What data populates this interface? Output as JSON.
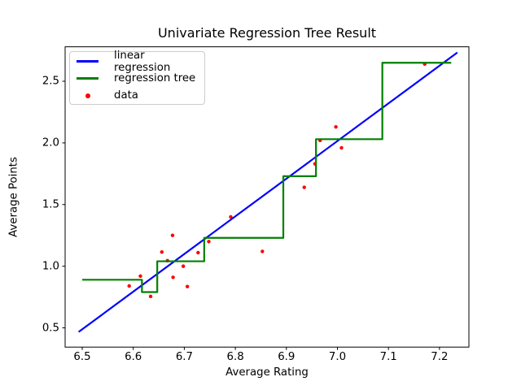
{
  "figure": {
    "background": "#ffffff",
    "spine_color": "#000000"
  },
  "chart_data": {
    "type": "line",
    "title": "Univariate Regression Tree Result",
    "xlabel": "Average Rating",
    "ylabel": "Average Points",
    "xlim": [
      6.4665,
      7.2576
    ],
    "ylim": [
      0.3439,
      2.7795
    ],
    "xticks": [
      6.5,
      6.6,
      6.7,
      6.8,
      6.9,
      7.0,
      7.1,
      7.2
    ],
    "yticks": [
      0.5,
      1.0,
      1.5,
      2.0,
      2.5
    ],
    "grid": false,
    "legend_position": "upper left",
    "series": [
      {
        "name": "data",
        "type": "scatter",
        "color": "#ff0000",
        "marker_radius": 2.2,
        "points": [
          [
            6.592,
            0.84
          ],
          [
            6.614,
            0.92
          ],
          [
            6.634,
            0.755
          ],
          [
            6.656,
            1.115
          ],
          [
            6.667,
            1.045
          ],
          [
            6.677,
            1.25
          ],
          [
            6.678,
            0.91
          ],
          [
            6.698,
            1.0
          ],
          [
            6.706,
            0.835
          ],
          [
            6.727,
            1.11
          ],
          [
            6.748,
            1.2
          ],
          [
            6.791,
            1.4
          ],
          [
            6.853,
            1.12
          ],
          [
            6.935,
            1.64
          ],
          [
            6.956,
            1.83
          ],
          [
            6.966,
            2.02
          ],
          [
            6.997,
            2.13
          ],
          [
            7.008,
            1.96
          ],
          [
            7.171,
            2.64
          ]
        ]
      },
      {
        "name": "linear regression",
        "type": "line",
        "color": "#0000ff",
        "line_width": 2.2,
        "points": [
          [
            6.493,
            0.467
          ],
          [
            7.235,
            2.733
          ]
        ]
      },
      {
        "name": "regression tree",
        "type": "step",
        "color": "#008000",
        "line_width": 2.2,
        "points": [
          [
            6.5,
            0.89
          ],
          [
            6.617,
            0.89
          ],
          [
            6.617,
            0.79
          ],
          [
            6.647,
            0.79
          ],
          [
            6.647,
            1.04
          ],
          [
            6.739,
            1.04
          ],
          [
            6.739,
            1.23
          ],
          [
            6.894,
            1.23
          ],
          [
            6.894,
            1.73
          ],
          [
            6.958,
            1.73
          ],
          [
            6.958,
            2.03
          ],
          [
            7.088,
            2.03
          ],
          [
            7.088,
            2.65
          ],
          [
            7.223,
            2.65
          ]
        ]
      }
    ],
    "legend": {
      "items": [
        {
          "label": "linear regression",
          "swatch": "line",
          "color": "#0000ff"
        },
        {
          "label": "regression tree",
          "swatch": "line",
          "color": "#008000"
        },
        {
          "label": "data",
          "swatch": "dot",
          "color": "#ff0000"
        }
      ]
    }
  }
}
